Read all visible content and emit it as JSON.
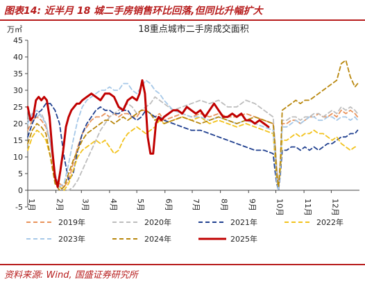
{
  "header": {
    "title": "图表14:  近半月 18 城二手房销售环比回落,但同比升幅扩大"
  },
  "source": "资料来源: Wind, 国盛证券研究所",
  "chart_data": {
    "type": "line",
    "title": "18重点城市二手房成交面积",
    "ylabel": "万㎡",
    "ylim": [
      -5,
      45
    ],
    "yticks": [
      -5,
      0,
      5,
      10,
      15,
      20,
      25,
      30,
      35,
      40,
      45
    ],
    "x_months": [
      "1月",
      "2月",
      "3月",
      "4月",
      "5月",
      "6月",
      "7月",
      "8月",
      "9月",
      "10月",
      "11月",
      "12月"
    ],
    "x_domain": [
      0,
      365
    ],
    "grid": false,
    "legend_position": "bottom",
    "series": [
      {
        "name": "2019年",
        "color": "#e8925a",
        "dash": "6,4",
        "width": 1.8,
        "x": [
          0,
          5,
          10,
          15,
          20,
          25,
          30,
          35,
          40,
          45,
          50,
          55,
          60,
          65,
          70,
          75,
          80,
          85,
          90,
          95,
          100,
          105,
          110,
          115,
          120,
          125,
          130,
          135,
          140,
          145,
          150,
          160,
          170,
          180,
          190,
          200,
          210,
          220,
          230,
          240,
          250,
          260,
          270,
          272,
          274,
          276,
          278,
          280,
          285,
          290,
          295,
          300,
          305,
          310,
          315,
          320,
          325,
          330,
          335,
          340,
          345,
          350,
          355,
          360,
          363
        ],
        "y": [
          18,
          21,
          22,
          21,
          19,
          14,
          3,
          2,
          1,
          3,
          8,
          13,
          17,
          19,
          21,
          22,
          22,
          23,
          22,
          23,
          22,
          23,
          23,
          22,
          22,
          24,
          24,
          23,
          22,
          23,
          21,
          22,
          23,
          22,
          23,
          22,
          23,
          22,
          22,
          23,
          22,
          21,
          20,
          14,
          6,
          1,
          8,
          20,
          20,
          21,
          21,
          20,
          21,
          22,
          22,
          23,
          22,
          22,
          23,
          22,
          24,
          23,
          24,
          23,
          22
        ]
      },
      {
        "name": "2020年",
        "color": "#bdbdbd",
        "dash": "6,4",
        "width": 1.8,
        "x": [
          0,
          5,
          10,
          15,
          20,
          25,
          30,
          35,
          40,
          45,
          50,
          55,
          60,
          65,
          70,
          75,
          80,
          85,
          90,
          95,
          100,
          105,
          110,
          115,
          120,
          125,
          130,
          135,
          140,
          145,
          150,
          160,
          170,
          180,
          190,
          200,
          210,
          220,
          230,
          240,
          250,
          260,
          270,
          272,
          274,
          276,
          278,
          280,
          285,
          290,
          295,
          300,
          305,
          310,
          315,
          320,
          325,
          330,
          335,
          340,
          345,
          350,
          355,
          360,
          363
        ],
        "y": [
          21,
          23,
          22,
          23,
          20,
          14,
          4,
          1,
          0,
          0,
          1,
          3,
          6,
          9,
          12,
          15,
          18,
          20,
          22,
          23,
          24,
          25,
          26,
          25,
          23,
          24,
          25,
          26,
          28,
          27,
          26,
          24,
          25,
          26,
          27,
          26,
          27,
          25,
          25,
          27,
          26,
          24,
          22,
          15,
          7,
          1,
          9,
          21,
          21,
          22,
          22,
          21,
          22,
          22,
          23,
          23,
          22,
          23,
          24,
          23,
          25,
          24,
          25,
          24,
          23
        ]
      },
      {
        "name": "2021年",
        "color": "#1f3f8f",
        "dash": "6,4",
        "width": 1.8,
        "x": [
          0,
          5,
          10,
          15,
          20,
          25,
          30,
          35,
          40,
          45,
          50,
          55,
          60,
          65,
          70,
          75,
          80,
          85,
          90,
          95,
          100,
          105,
          110,
          115,
          120,
          125,
          130,
          135,
          140,
          145,
          150,
          160,
          170,
          180,
          190,
          200,
          210,
          220,
          230,
          240,
          250,
          260,
          270,
          272,
          274,
          276,
          278,
          280,
          285,
          290,
          295,
          300,
          305,
          310,
          315,
          320,
          325,
          330,
          335,
          340,
          345,
          350,
          355,
          360,
          363
        ],
        "y": [
          16,
          20,
          23,
          24,
          26,
          26,
          24,
          20,
          10,
          3,
          5,
          12,
          17,
          20,
          22,
          24,
          25,
          24,
          24,
          23,
          23,
          24,
          24,
          22,
          21,
          22,
          24,
          23,
          22,
          22,
          21,
          20,
          19,
          18,
          18,
          17,
          16,
          15,
          14,
          13,
          12,
          12,
          11,
          6,
          2,
          0,
          5,
          12,
          12,
          13,
          13,
          12,
          13,
          12,
          13,
          12,
          13,
          14,
          14,
          15,
          16,
          16,
          17,
          17,
          18
        ]
      },
      {
        "name": "2022年",
        "color": "#f2c21b",
        "dash": "6,4",
        "width": 1.8,
        "x": [
          0,
          5,
          10,
          15,
          20,
          25,
          30,
          35,
          40,
          45,
          50,
          55,
          60,
          65,
          70,
          75,
          80,
          85,
          90,
          95,
          100,
          105,
          110,
          115,
          120,
          125,
          130,
          135,
          140,
          145,
          150,
          160,
          170,
          180,
          190,
          200,
          210,
          220,
          230,
          240,
          250,
          260,
          270,
          272,
          274,
          276,
          278,
          280,
          285,
          290,
          295,
          300,
          305,
          310,
          315,
          320,
          325,
          330,
          335,
          340,
          345,
          350,
          355,
          360,
          363
        ],
        "y": [
          12,
          16,
          18,
          17,
          15,
          10,
          3,
          1,
          0,
          2,
          6,
          10,
          12,
          13,
          14,
          15,
          14,
          15,
          13,
          11,
          12,
          15,
          17,
          18,
          19,
          18,
          17,
          18,
          19,
          21,
          20,
          21,
          22,
          21,
          22,
          20,
          21,
          20,
          19,
          20,
          19,
          18,
          17,
          10,
          3,
          1,
          6,
          15,
          15,
          16,
          17,
          16,
          17,
          17,
          18,
          17,
          17,
          16,
          15,
          16,
          14,
          13,
          12,
          13,
          13
        ]
      },
      {
        "name": "2023年",
        "color": "#a6c8e8",
        "dash": "6,4",
        "width": 1.8,
        "x": [
          0,
          5,
          10,
          15,
          20,
          25,
          30,
          35,
          40,
          45,
          50,
          55,
          60,
          65,
          70,
          75,
          80,
          85,
          90,
          95,
          100,
          105,
          110,
          115,
          120,
          125,
          130,
          135,
          140,
          145,
          150,
          160,
          170,
          180,
          190,
          200,
          210,
          220,
          230,
          240,
          250,
          260,
          270,
          272,
          274,
          276,
          278,
          280,
          285,
          290,
          295,
          300,
          305,
          310,
          315,
          320,
          325,
          330,
          335,
          340,
          345,
          350,
          355,
          360,
          363
        ],
        "y": [
          20,
          23,
          24,
          22,
          20,
          14,
          5,
          1,
          2,
          8,
          15,
          21,
          25,
          27,
          28,
          29,
          30,
          30,
          31,
          30,
          30,
          32,
          32,
          30,
          29,
          31,
          33,
          32,
          30,
          29,
          27,
          24,
          23,
          22,
          22,
          21,
          22,
          21,
          20,
          21,
          20,
          19,
          18,
          11,
          3,
          0,
          7,
          19,
          19,
          20,
          21,
          20,
          21,
          22,
          22,
          21,
          21,
          22,
          22,
          21,
          22,
          22,
          21,
          22,
          21
        ]
      },
      {
        "name": "2024年",
        "color": "#b8860b",
        "dash": "6,4",
        "width": 1.8,
        "x": [
          0,
          5,
          10,
          15,
          20,
          25,
          30,
          35,
          40,
          45,
          50,
          55,
          60,
          65,
          70,
          75,
          80,
          85,
          90,
          95,
          100,
          105,
          110,
          115,
          120,
          125,
          130,
          135,
          140,
          145,
          150,
          160,
          170,
          180,
          190,
          200,
          210,
          220,
          230,
          240,
          250,
          260,
          270,
          272,
          274,
          276,
          278,
          280,
          285,
          290,
          295,
          300,
          305,
          310,
          315,
          320,
          325,
          330,
          335,
          340,
          345,
          350,
          355,
          360,
          363
        ],
        "y": [
          14,
          18,
          20,
          19,
          17,
          10,
          2,
          0,
          1,
          5,
          9,
          12,
          15,
          17,
          18,
          19,
          20,
          21,
          21,
          20,
          21,
          22,
          21,
          22,
          23,
          24,
          24,
          23,
          21,
          22,
          20,
          21,
          22,
          21,
          20,
          21,
          22,
          21,
          20,
          21,
          22,
          21,
          20,
          14,
          5,
          1,
          9,
          24,
          25,
          26,
          27,
          26,
          27,
          27,
          28,
          29,
          30,
          31,
          32,
          33,
          38,
          39,
          34,
          31,
          32
        ]
      },
      {
        "name": "2025年",
        "color": "#c00000",
        "dash": "",
        "width": 3,
        "x": [
          0,
          3,
          6,
          9,
          12,
          15,
          18,
          21,
          24,
          27,
          30,
          33,
          36,
          39,
          42,
          45,
          48,
          51,
          54,
          57,
          60,
          65,
          70,
          75,
          80,
          85,
          90,
          95,
          100,
          105,
          110,
          115,
          120,
          123,
          126,
          129,
          132,
          135,
          138,
          141,
          144,
          147,
          150,
          155,
          160,
          165,
          170,
          175,
          180,
          185,
          190,
          195,
          200,
          205,
          210,
          215,
          220,
          225,
          230,
          235,
          240,
          245,
          250,
          255,
          260,
          265
        ],
        "y": [
          25,
          21,
          22,
          27,
          28,
          27,
          28,
          27,
          22,
          12,
          4,
          1,
          6,
          12,
          19,
          22,
          24,
          25,
          26,
          26,
          27,
          28,
          29,
          28,
          27,
          29,
          29,
          28,
          25,
          24,
          27,
          28,
          27,
          29,
          33,
          29,
          16,
          11,
          11,
          20,
          22,
          21,
          22,
          23,
          24,
          24,
          23,
          25,
          24,
          23,
          24,
          22,
          24,
          26,
          24,
          22,
          22,
          23,
          22,
          23,
          21,
          21,
          20,
          21,
          20,
          19
        ]
      }
    ]
  }
}
